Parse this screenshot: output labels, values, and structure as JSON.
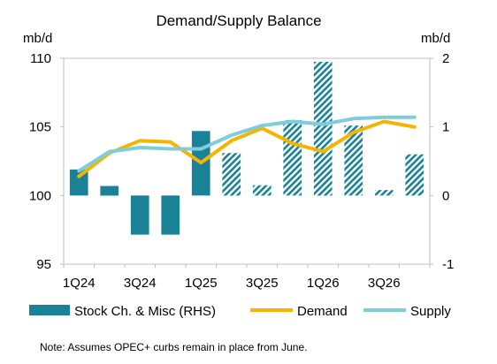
{
  "chart_data": {
    "type": "bar+line",
    "title": "Demand/Supply Balance",
    "y_left_unit": "mb/d",
    "y_right_unit": "mb/d",
    "y_left_ticks": [
      "110",
      "105",
      "100",
      "95"
    ],
    "y_right_ticks": [
      "2",
      "1",
      "0",
      "-1"
    ],
    "ylim_left": [
      95,
      110
    ],
    "ylim_right": [
      -1,
      2
    ],
    "categories": [
      "1Q24",
      "2Q24",
      "3Q24",
      "4Q24",
      "1Q25",
      "2Q25",
      "3Q25",
      "4Q25",
      "1Q26",
      "2Q26",
      "3Q26",
      "4Q26"
    ],
    "x_tick_labels": [
      "1Q24",
      "",
      "3Q24",
      "",
      "1Q25",
      "",
      "3Q25",
      "",
      "1Q26",
      "",
      "3Q26",
      ""
    ],
    "forecast_start_index": 5,
    "series": [
      {
        "name": "Stock Ch. & Misc (RHS)",
        "kind": "bar",
        "axis": "right",
        "values": [
          0.38,
          0.14,
          -0.57,
          -0.57,
          0.94,
          0.62,
          0.15,
          1.1,
          1.95,
          1.02,
          0.08,
          0.6
        ]
      },
      {
        "name": "Demand",
        "kind": "line",
        "axis": "left",
        "values": [
          101.4,
          103.1,
          104.0,
          103.9,
          102.4,
          104.0,
          104.9,
          103.8,
          103.2,
          104.6,
          105.4,
          105.0
        ]
      },
      {
        "name": "Supply",
        "kind": "line",
        "axis": "left",
        "values": [
          101.8,
          103.2,
          103.5,
          103.4,
          103.4,
          104.4,
          105.1,
          105.4,
          105.2,
          105.6,
          105.7,
          105.7
        ]
      }
    ],
    "colors": {
      "bars": "#1a8296",
      "demand": "#f5b400",
      "supply": "#7fcddb",
      "axis": "#bfbfbf"
    },
    "grid": "horizontal, top line only",
    "legend_position": "bottom",
    "note": "Note: Assumes OPEC+ curbs remain in place from June."
  }
}
